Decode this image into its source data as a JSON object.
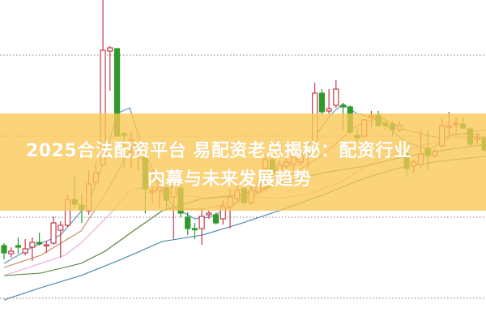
{
  "overlay": {
    "title_line1": "2025合法配资平台 易配资老总揭秘：配资行业",
    "title_line2": "内幕与未来发展趋势",
    "banner_color": "#fac855"
  },
  "chart_data": {
    "type": "candlestick",
    "title": "",
    "xlabel": "",
    "ylabel": "",
    "ylim": [
      10,
      46.8
    ],
    "grid": true,
    "gridlines": [
      10,
      20,
      30,
      40
    ],
    "colors": {
      "up": "#c8394b",
      "down": "#2f9a2c",
      "grid": "#9a9a9a"
    },
    "candles": [
      [
        16.5,
        16.8,
        14.8,
        15.6
      ],
      [
        15.5,
        16.3,
        15.0,
        15.8
      ],
      [
        16.5,
        17.5,
        15.5,
        16.3
      ],
      [
        15.6,
        17.3,
        15.3,
        16.1
      ],
      [
        16.3,
        17.5,
        14.6,
        16.9
      ],
      [
        16.9,
        18.1,
        16.5,
        16.7
      ],
      [
        16.5,
        17.0,
        15.6,
        16.6
      ],
      [
        16.8,
        20.1,
        16.6,
        19.3
      ],
      [
        18.4,
        19.5,
        15.0,
        19.0
      ],
      [
        19.0,
        22.8,
        18.8,
        22.2
      ],
      [
        22.2,
        25.1,
        21.1,
        21.6
      ],
      [
        21.5,
        22.8,
        19.3,
        20.9
      ],
      [
        20.8,
        25.8,
        20.3,
        24.1
      ],
      [
        24.3,
        26.8,
        23.8,
        25.5
      ],
      [
        26.5,
        46.8,
        26.5,
        40.6
      ],
      [
        40.5,
        41.1,
        35.6,
        40.9
      ],
      [
        40.8,
        40.8,
        30.0,
        30.0
      ],
      [
        30.3,
        30.5,
        26.0,
        30.1
      ],
      [
        28.6,
        30.5,
        26.0,
        29.5
      ],
      [
        28.5,
        29.1,
        25.8,
        29.0
      ],
      [
        27.6,
        28.1,
        20.5,
        23.5
      ],
      [
        23.1,
        23.8,
        21.8,
        23.3
      ],
      [
        23.3,
        24.1,
        21.1,
        23.7
      ],
      [
        23.6,
        23.8,
        20.8,
        22.1
      ],
      [
        22.5,
        24.6,
        17.3,
        23.8
      ],
      [
        23.6,
        24.3,
        20.0,
        20.5
      ],
      [
        20.0,
        20.6,
        17.8,
        18.6
      ],
      [
        18.6,
        19.3,
        17.3,
        18.5
      ],
      [
        18.6,
        21.1,
        16.6,
        20.1
      ],
      [
        20.3,
        20.8,
        19.8,
        20.5
      ],
      [
        20.3,
        20.6,
        19.1,
        19.3
      ],
      [
        19.8,
        22.1,
        19.1,
        21.3
      ],
      [
        21.3,
        23.5,
        18.6,
        22.5
      ],
      [
        22.3,
        24.0,
        21.8,
        23.3
      ],
      [
        23.5,
        24.0,
        21.6,
        21.8
      ],
      [
        21.8,
        23.8,
        21.5,
        23.3
      ],
      [
        23.1,
        24.8,
        22.8,
        24.1
      ],
      [
        26.0,
        27.6,
        23.3,
        27.1
      ],
      [
        27.1,
        27.6,
        24.8,
        25.5
      ],
      [
        25.8,
        27.0,
        24.8,
        26.5
      ],
      [
        26.3,
        27.3,
        25.8,
        26.8
      ],
      [
        26.5,
        27.8,
        25.8,
        27.5
      ],
      [
        26.8,
        28.3,
        26.3,
        27.8
      ],
      [
        27.5,
        29.1,
        26.1,
        27.8
      ],
      [
        29.1,
        36.6,
        28.8,
        35.3
      ],
      [
        35.3,
        35.8,
        32.6,
        33.0
      ],
      [
        33.1,
        35.8,
        32.8,
        33.4
      ],
      [
        33.8,
        36.9,
        33.5,
        35.8
      ],
      [
        33.8,
        34.1,
        30.6,
        33.6
      ],
      [
        33.6,
        33.8,
        30.3,
        30.5
      ],
      [
        30.1,
        31.1,
        29.3,
        29.8
      ],
      [
        30.0,
        32.1,
        29.8,
        32.0
      ],
      [
        32.3,
        33.1,
        31.1,
        32.5
      ],
      [
        32.6,
        33.1,
        31.1,
        31.3
      ],
      [
        31.6,
        32.0,
        30.8,
        31.3
      ],
      [
        31.5,
        31.8,
        30.1,
        30.8
      ],
      [
        30.8,
        31.8,
        30.5,
        31.3
      ],
      [
        27.8,
        28.1,
        25.0,
        26.0
      ],
      [
        26.3,
        27.1,
        25.5,
        26.8
      ],
      [
        26.5,
        30.8,
        26.0,
        27.8
      ],
      [
        28.5,
        30.8,
        25.8,
        27.6
      ],
      [
        27.6,
        28.5,
        27.3,
        28.1
      ],
      [
        28.8,
        32.3,
        28.6,
        31.3
      ],
      [
        31.1,
        33.0,
        30.1,
        31.3
      ],
      [
        31.5,
        32.3,
        30.5,
        31.6
      ],
      [
        31.5,
        32.3,
        30.8,
        31.0
      ],
      [
        30.9,
        31.1,
        28.8,
        29.0
      ],
      [
        29.6,
        30.3,
        29.0,
        29.8
      ],
      [
        29.8,
        30.0,
        28.0,
        28.3
      ]
    ],
    "candle_format": [
      "open",
      "high",
      "low",
      "close"
    ],
    "moving_averages": [
      {
        "color": "#5b93b8",
        "points": [
          [
            0,
            14.3
          ],
          [
            4,
            16.3
          ],
          [
            8,
            17.8
          ],
          [
            12,
            21.8
          ],
          [
            14.3,
            27.3
          ],
          [
            16,
            32.8
          ],
          [
            17.8,
            33.5
          ],
          [
            19.5,
            28.8
          ],
          [
            22.4,
            23.3
          ],
          [
            24,
            21.3
          ],
          [
            27,
            19.8
          ],
          [
            29.2,
            20.0
          ],
          [
            32.7,
            21.6
          ],
          [
            37.3,
            25.3
          ],
          [
            41.9,
            27.3
          ],
          [
            44.7,
            30.8
          ],
          [
            46.4,
            32.8
          ],
          [
            48,
            34.0
          ],
          [
            49.9,
            32.8
          ],
          [
            53.3,
            32.0
          ],
          [
            56.8,
            29.3
          ],
          [
            60.2,
            28.3
          ],
          [
            63.6,
            30.3
          ],
          [
            67.1,
            30.3
          ],
          [
            68.2,
            29.3
          ]
        ]
      },
      {
        "color": "#c2825e",
        "points": [
          [
            0,
            13.8
          ],
          [
            5.2,
            15.3
          ],
          [
            10.9,
            18.3
          ],
          [
            14.3,
            22.8
          ],
          [
            17.8,
            28.3
          ],
          [
            20.1,
            26.8
          ],
          [
            23.5,
            21.0
          ],
          [
            28.1,
            21.0
          ],
          [
            33.8,
            22.0
          ],
          [
            39.6,
            24.6
          ],
          [
            45.3,
            27.8
          ],
          [
            49.9,
            31.3
          ],
          [
            53.3,
            32.3
          ],
          [
            56.8,
            30.8
          ],
          [
            61.4,
            29.8
          ],
          [
            64.8,
            30.3
          ],
          [
            68.2,
            30.8
          ]
        ]
      },
      {
        "color": "#e6a6d6",
        "points": [
          [
            0,
            12.8
          ],
          [
            5.2,
            14.3
          ],
          [
            8.6,
            15.3
          ],
          [
            10.9,
            16.8
          ],
          [
            14.9,
            20.3
          ],
          [
            17.8,
            23.3
          ],
          [
            20.6,
            23.8
          ],
          [
            24.7,
            22.8
          ],
          [
            29.2,
            22.3
          ],
          [
            33.8,
            22.6
          ],
          [
            38.4,
            22.3
          ],
          [
            43,
            22.8
          ],
          [
            47.6,
            24.3
          ],
          [
            53.3,
            27.3
          ],
          [
            59.1,
            28.8
          ],
          [
            63.6,
            29.8
          ],
          [
            68.2,
            30.0
          ]
        ]
      },
      {
        "color": "#557c35",
        "points": [
          [
            0,
            12.8
          ],
          [
            5.2,
            13.1
          ],
          [
            10.9,
            14.3
          ],
          [
            14.3,
            15.8
          ],
          [
            18.3,
            18.3
          ],
          [
            22.4,
            20.8
          ],
          [
            28.1,
            22.3
          ],
          [
            33.8,
            22.8
          ],
          [
            39.6,
            24.3
          ],
          [
            45.3,
            25.5
          ],
          [
            51,
            26.3
          ],
          [
            56.8,
            27.5
          ],
          [
            62.5,
            28.3
          ],
          [
            68.2,
            29.0
          ]
        ]
      },
      {
        "color": "#3d7ea6",
        "points": [
          [
            0,
            9.8
          ],
          [
            5.2,
            11.3
          ],
          [
            10.9,
            12.8
          ],
          [
            16.6,
            14.8
          ],
          [
            22.4,
            17.0
          ],
          [
            28.1,
            17.8
          ],
          [
            33.8,
            19.3
          ],
          [
            39.6,
            21.0
          ],
          [
            45.3,
            22.8
          ],
          [
            51,
            24.8
          ],
          [
            56.8,
            26.3
          ],
          [
            62.5,
            27.0
          ],
          [
            68.2,
            27.5
          ]
        ]
      }
    ]
  }
}
